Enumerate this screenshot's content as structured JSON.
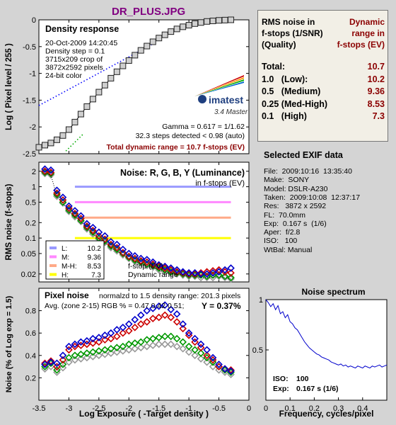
{
  "page_title": "DR_PLUS.JPG",
  "chart_data": [
    {
      "type": "line",
      "panel": "density",
      "title": "Density response",
      "info_lines": [
        "20-Oct-2009 14:20:45",
        "Density step = 0.1",
        "3715x209 crop of",
        "3872x2592 pixels",
        "24-bit color"
      ],
      "ylabel": "Log ( Pixel level / 255 )",
      "xlim": [
        -3.5,
        0
      ],
      "ylim": [
        -2.5,
        0
      ],
      "xticks": [
        -3.5,
        -3,
        -2.5,
        -2,
        -1.5,
        -1,
        -0.5,
        0
      ],
      "yticks": [
        -2.5,
        -2,
        -1.5,
        -1,
        -0.5,
        0
      ],
      "ytick_labels": [
        "-2.5",
        "-2",
        "-1.5",
        "-1",
        "-0.5",
        "0"
      ],
      "steps_x": [
        -3.5,
        -3.4,
        -3.3,
        -3.2,
        -3.1,
        -3.0,
        -2.9,
        -2.8,
        -2.7,
        -2.6,
        -2.5,
        -2.4,
        -2.3,
        -2.2,
        -2.1,
        -2.0,
        -1.9,
        -1.8,
        -1.7,
        -1.6,
        -1.5,
        -1.4,
        -1.3,
        -1.2,
        -1.1,
        -1.0,
        -0.9,
        -0.8,
        -0.7,
        -0.6,
        -0.5,
        -0.4,
        -0.3
      ],
      "steps_y": [
        -2.38,
        -2.34,
        -2.3,
        -2.24,
        -2.16,
        -2.05,
        -1.91,
        -1.76,
        -1.62,
        -1.48,
        -1.35,
        -1.22,
        -1.09,
        -0.97,
        -0.86,
        -0.76,
        -0.66,
        -0.57,
        -0.49,
        -0.41,
        -0.34,
        -0.28,
        -0.22,
        -0.17,
        -0.13,
        -0.1,
        -0.07,
        -0.05,
        -0.03,
        -0.02,
        -0.01,
        -0.005,
        0
      ],
      "gamma_fit": {
        "x": [
          -3.5,
          -1.6
        ],
        "y": [
          -1.6,
          -0.45
        ]
      },
      "toe_fit": {
        "x": [
          -3.05,
          -2.75
        ],
        "y": [
          -2.45,
          -2.12
        ]
      },
      "logo": {
        "brand": "imatest",
        "version": "3.4  Master"
      },
      "gamma_text": "Gamma = 0.617 = 1/1.62",
      "steps_text": "32.3 steps detected < 0.98 (auto)",
      "total_dr_text": "Total dynamic range = 10.7 f-stops (EV)"
    },
    {
      "type": "line",
      "panel": "rms_noise",
      "title": "Noise: R, G, B, Y (Luminance)",
      "subtitle": "in f-stops (EV)",
      "ylabel": "RMS noise (f-stops)",
      "scale": "log",
      "xlim": [
        -3.5,
        0
      ],
      "ylim": [
        0.014,
        3
      ],
      "xticks": [
        -3.5,
        -3,
        -2.5,
        -2,
        -1.5,
        -1,
        -0.5,
        0
      ],
      "yticks": [
        2,
        1,
        0.5,
        0.2,
        0.1,
        0.05,
        0.02
      ],
      "ytick_labels": [
        "2",
        "1",
        "0.5",
        "0.2",
        "0.1",
        "0.05",
        "0.02"
      ],
      "thresholds": [
        {
          "name": "L:",
          "value": 1.0,
          "dr": "10.2",
          "color": "#9999ff"
        },
        {
          "name": "M:",
          "value": 0.5,
          "dr": "9.36",
          "color": "#ff88ff"
        },
        {
          "name": "M-H:",
          "value": 0.25,
          "dr": "8.53",
          "color": "#ffaa88"
        },
        {
          "name": "H:",
          "value": 0.1,
          "dr": "7.3",
          "color": "#ffff00"
        }
      ],
      "x": [
        -3.4,
        -3.3,
        -3.2,
        -3.1,
        -3.0,
        -2.9,
        -2.8,
        -2.7,
        -2.6,
        -2.5,
        -2.4,
        -2.3,
        -2.2,
        -2.1,
        -2.0,
        -1.9,
        -1.8,
        -1.7,
        -1.6,
        -1.5,
        -1.4,
        -1.3,
        -1.2,
        -1.1,
        -1.0,
        -0.9,
        -0.8,
        -0.7,
        -0.6,
        -0.5,
        -0.4,
        -0.3
      ],
      "series": [
        {
          "color": "#0000cc",
          "values": [
            2.2,
            2.1,
            0.85,
            0.62,
            0.42,
            0.34,
            0.27,
            0.19,
            0.16,
            0.13,
            0.11,
            0.085,
            0.075,
            0.06,
            0.05,
            0.045,
            0.04,
            0.038,
            0.034,
            0.03,
            0.028,
            0.026,
            0.024,
            0.022,
            0.021,
            0.021,
            0.02,
            0.02,
            0.021,
            0.022,
            0.024,
            0.026
          ]
        },
        {
          "color": "#cc0000",
          "values": [
            2.0,
            1.9,
            0.75,
            0.55,
            0.38,
            0.3,
            0.24,
            0.17,
            0.14,
            0.11,
            0.095,
            0.075,
            0.065,
            0.052,
            0.044,
            0.04,
            0.036,
            0.034,
            0.031,
            0.028,
            0.026,
            0.024,
            0.022,
            0.021,
            0.02,
            0.02,
            0.021,
            0.022,
            0.023,
            0.024,
            0.022,
            0.021
          ]
        },
        {
          "color": "#009900",
          "values": [
            1.9,
            1.8,
            0.7,
            0.5,
            0.35,
            0.28,
            0.22,
            0.16,
            0.13,
            0.1,
            0.088,
            0.07,
            0.06,
            0.05,
            0.042,
            0.037,
            0.034,
            0.031,
            0.029,
            0.026,
            0.024,
            0.022,
            0.021,
            0.02,
            0.019,
            0.019,
            0.019,
            0.018,
            0.019,
            0.019,
            0.018,
            0.017
          ]
        },
        {
          "color": "#999999",
          "values": [
            1.8,
            1.7,
            0.65,
            0.48,
            0.33,
            0.26,
            0.21,
            0.15,
            0.12,
            0.095,
            0.082,
            0.065,
            0.056,
            0.047,
            0.04,
            0.035,
            0.032,
            0.029,
            0.027,
            0.024,
            0.022,
            0.021,
            0.02,
            0.019,
            0.018,
            0.018,
            0.017,
            0.017,
            0.017,
            0.018,
            0.017,
            0.016
          ]
        }
      ],
      "legend_bottom_labels": [
        "f-stop (EV)",
        "Dynamic range"
      ]
    },
    {
      "type": "line",
      "panel": "pixel_noise",
      "title": "Pixel noise",
      "subtitle": "normalzd to 1.5 density range: 201.3 pixels",
      "avg_text": "Avg. (zone 2-15) RGB % = 0.47  0.42  0.51;",
      "y_text": "Y = 0.37%",
      "ylabel": "Noise (% of Log exp = 1.5)",
      "xlabel": "Log Exposure ( -Target density )",
      "xlim": [
        -3.5,
        0
      ],
      "ylim": [
        0,
        1.0
      ],
      "xticks": [
        -3.5,
        -3,
        -2.5,
        -2,
        -1.5,
        -1,
        -0.5,
        0
      ],
      "xtick_labels": [
        "-3.5",
        "-3",
        "-2.5",
        "-2",
        "-1.5",
        "-1",
        "-0.5",
        "0"
      ],
      "yticks": [
        0.2,
        0.4,
        0.6,
        0.8
      ],
      "ytick_labels": [
        "0.2",
        "0.4",
        "0.6",
        "0.8"
      ],
      "x": [
        -3.4,
        -3.3,
        -3.2,
        -3.1,
        -3.0,
        -2.9,
        -2.8,
        -2.7,
        -2.6,
        -2.5,
        -2.4,
        -2.3,
        -2.2,
        -2.1,
        -2.0,
        -1.9,
        -1.8,
        -1.7,
        -1.6,
        -1.5,
        -1.4,
        -1.3,
        -1.2,
        -1.1,
        -1.0,
        -0.9,
        -0.8,
        -0.7,
        -0.6,
        -0.5,
        -0.4,
        -0.3
      ],
      "series": [
        {
          "color": "#0000cc",
          "values": [
            0.32,
            0.34,
            0.33,
            0.4,
            0.48,
            0.5,
            0.52,
            0.53,
            0.55,
            0.56,
            0.58,
            0.6,
            0.63,
            0.65,
            0.68,
            0.72,
            0.76,
            0.8,
            0.82,
            0.84,
            0.85,
            0.81,
            0.77,
            0.68,
            0.6,
            0.55,
            0.5,
            0.45,
            0.38,
            0.32,
            0.28,
            0.26
          ]
        },
        {
          "color": "#cc0000",
          "values": [
            0.33,
            0.35,
            0.3,
            0.36,
            0.45,
            0.48,
            0.49,
            0.5,
            0.51,
            0.52,
            0.54,
            0.55,
            0.57,
            0.6,
            0.62,
            0.65,
            0.68,
            0.7,
            0.73,
            0.74,
            0.76,
            0.74,
            0.7,
            0.64,
            0.58,
            0.52,
            0.47,
            0.4,
            0.36,
            0.3,
            0.28,
            0.27
          ]
        },
        {
          "color": "#009900",
          "values": [
            0.3,
            0.33,
            0.27,
            0.32,
            0.38,
            0.4,
            0.41,
            0.42,
            0.43,
            0.44,
            0.45,
            0.46,
            0.47,
            0.48,
            0.5,
            0.51,
            0.52,
            0.54,
            0.55,
            0.56,
            0.57,
            0.57,
            0.55,
            0.52,
            0.48,
            0.45,
            0.42,
            0.38,
            0.34,
            0.3,
            0.27,
            0.25
          ]
        },
        {
          "color": "#999999",
          "values": [
            0.28,
            0.3,
            0.25,
            0.29,
            0.34,
            0.36,
            0.37,
            0.38,
            0.39,
            0.4,
            0.41,
            0.42,
            0.43,
            0.44,
            0.45,
            0.46,
            0.47,
            0.48,
            0.49,
            0.5,
            0.5,
            0.5,
            0.48,
            0.46,
            0.43,
            0.4,
            0.37,
            0.34,
            0.3,
            0.27,
            0.25,
            0.23
          ]
        }
      ]
    },
    {
      "type": "line",
      "panel": "noise_spectrum",
      "title": "Noise spectrum",
      "xlabel": "Frequency, cycles/pixel",
      "xlim": [
        0,
        0.5
      ],
      "ylim": [
        0,
        1
      ],
      "xticks": [
        0,
        0.1,
        0.2,
        0.3,
        0.4
      ],
      "xtick_labels": [
        "0",
        "0.1",
        "0.2",
        "0.3",
        "0.4"
      ],
      "yticks": [
        0.5,
        1
      ],
      "ytick_labels": [
        "0.5",
        "1"
      ],
      "x": [
        0.0,
        0.01,
        0.02,
        0.03,
        0.04,
        0.05,
        0.06,
        0.07,
        0.08,
        0.09,
        0.1,
        0.11,
        0.12,
        0.13,
        0.14,
        0.15,
        0.16,
        0.17,
        0.18,
        0.19,
        0.2,
        0.21,
        0.22,
        0.23,
        0.24,
        0.25,
        0.26,
        0.27,
        0.28,
        0.29,
        0.3,
        0.31,
        0.32,
        0.33,
        0.34,
        0.35,
        0.36,
        0.37,
        0.38,
        0.39,
        0.4,
        0.41,
        0.42,
        0.43,
        0.44,
        0.45,
        0.46,
        0.47,
        0.48,
        0.49,
        0.5
      ],
      "values": [
        1.0,
        0.97,
        0.93,
        0.96,
        0.9,
        0.94,
        0.86,
        0.88,
        0.82,
        0.85,
        0.78,
        0.76,
        0.72,
        0.7,
        0.66,
        0.62,
        0.58,
        0.55,
        0.52,
        0.5,
        0.48,
        0.46,
        0.45,
        0.43,
        0.42,
        0.41,
        0.4,
        0.38,
        0.37,
        0.36,
        0.35,
        0.36,
        0.34,
        0.35,
        0.33,
        0.34,
        0.33,
        0.32,
        0.34,
        0.33,
        0.32,
        0.34,
        0.33,
        0.32,
        0.34,
        0.33,
        0.34,
        0.35,
        0.33,
        0.34,
        0.35
      ],
      "iso_label": "ISO:",
      "iso_value": "100",
      "exp_label": "Exp:",
      "exp_value": "0.167 s  (1/6)"
    }
  ],
  "summary": {
    "header_left": [
      "RMS noise in",
      "f-stops (1/SNR)",
      "(Quality)"
    ],
    "header_right": [
      "Dynamic",
      "range in",
      "f-stops (EV)"
    ],
    "rows": [
      {
        "label": "Total:",
        "value": "10.7"
      },
      {
        "label": "1.0   (Low):",
        "value": "10.2"
      },
      {
        "label": "0.5   (Medium)",
        "value": "9.36"
      },
      {
        "label": "0.25 (Med-High)",
        "value": "8.53"
      },
      {
        "label": "0.1   (High)",
        "value": "7.3"
      }
    ],
    "value_color": "#8b0000"
  },
  "exif": {
    "title": "Selected EXIF data",
    "lines": [
      "File:  2009:10:16  13:35:40",
      "Make:  SONY",
      "Model: DSLR-A230",
      "Taken:  2009:10:08  12:37:17",
      "Res:   3872 x 2592",
      "FL:  70.0mm",
      "Exp:  0.167 s  (1/6)",
      "Aper:  f/2.8",
      "ISO:   100",
      "WtBal: Manual"
    ]
  },
  "colors": {
    "title": "#800080",
    "dark_red": "#8b0000",
    "background": "#d4d4d4"
  }
}
